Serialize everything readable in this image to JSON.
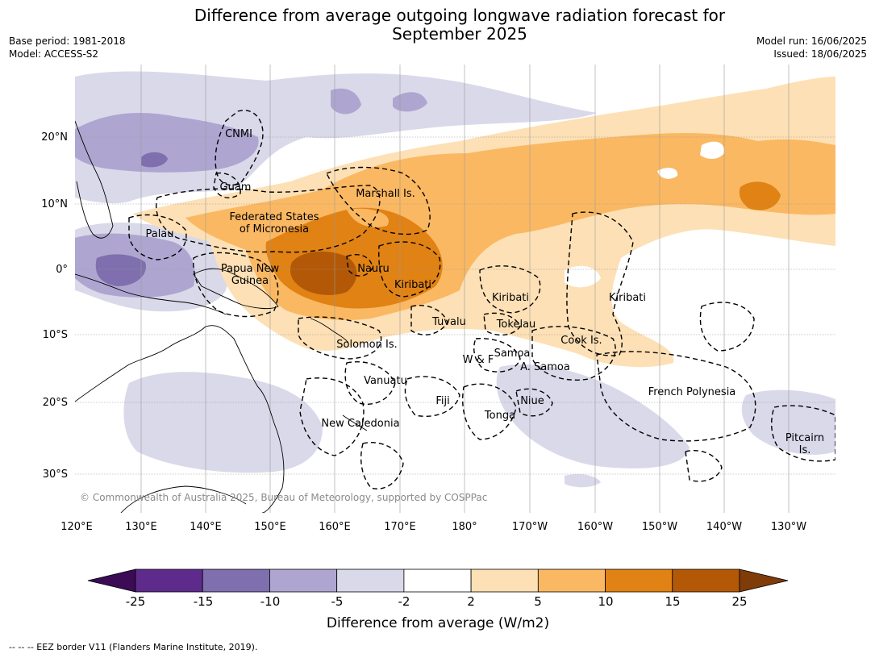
{
  "title_line1": "Difference from average outgoing longwave radiation forecast for",
  "title_line2": "September 2025",
  "meta_left": {
    "line1": "Base period: 1981-2018",
    "line2": "Model: ACCESS-S2"
  },
  "meta_right": {
    "line1": "Model run: 16/06/2025",
    "line2": "Issued: 18/06/2025"
  },
  "copyright": "© Commonwealth of Australia 2025, Bureau of Meteorology, supported by COSPPac",
  "lon_ticks": [
    "120°E",
    "130°E",
    "140°E",
    "150°E",
    "160°E",
    "170°E",
    "180°",
    "170°W",
    "160°W",
    "150°W",
    "140°W",
    "130°W"
  ],
  "lat_ticks": [
    "20°N",
    "10°N",
    "0°",
    "10°S",
    "20°S",
    "30°S"
  ],
  "region_labels": {
    "cnmi": "CNMI",
    "guam": "Guam",
    "marshall": "Marshall Is.",
    "fsm1": "Federated States",
    "fsm2": "of Micronesia",
    "palau": "Palau",
    "png1": "Papua New",
    "png2": "Guinea",
    "nauru": "Nauru",
    "kiribati_w": "Kiribati",
    "kiribati_c": "Kiribati",
    "kiribati_e": "Kiribati",
    "tuvalu": "Tuvalu",
    "tokelau": "Tokelau",
    "cook": "Cook Is.",
    "solomon": "Solomon Is.",
    "samoa": "Samoa",
    "wf": "W & F",
    "asamoa": "A. Samoa",
    "vanuatu": "Vanuatu",
    "fiji": "Fiji",
    "niue": "Niue",
    "tonga": "Tonga",
    "frpoly": "French Polynesia",
    "newcal": "New Caledonia",
    "pitcairn1": "Pitcairn",
    "pitcairn2": "Is."
  },
  "colorbar": {
    "title": "Difference from average (W/m2)",
    "ticks": [
      "-25",
      "-15",
      "-10",
      "-5",
      "-2",
      "2",
      "5",
      "10",
      "15",
      "25"
    ],
    "colors": [
      "#5e2a8c",
      "#7f6fae",
      "#aea6d0",
      "#d9d9ea",
      "#ffffff",
      "#fde0b5",
      "#fbb862",
      "#e08214",
      "#b35807"
    ],
    "under_color": "#3b0b55",
    "over_color": "#7f3b08"
  },
  "footnote": "--  --  -- EEZ border V11 (Flanders Marine Institute, 2019)."
}
